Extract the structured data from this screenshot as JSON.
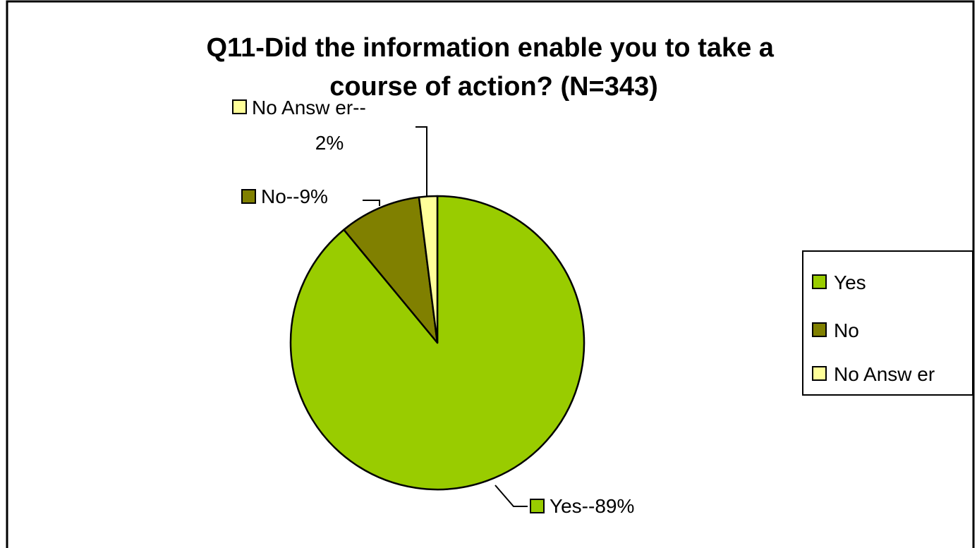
{
  "chart_data": {
    "type": "pie",
    "title": "Q11-Did the information enable you to take a course of action? (N=343)",
    "title_lines": [
      "Q11-Did the information enable you to take a",
      "course of action? (N=343)"
    ],
    "slices": [
      {
        "name": "Yes",
        "value": 89,
        "color": "#99cc00",
        "label_lines": [
          "Yes--89%"
        ]
      },
      {
        "name": "No",
        "value": 9,
        "color": "#808000",
        "label_lines": [
          "No--9%"
        ]
      },
      {
        "name": "No Answer",
        "value": 2,
        "color": "#ffff99",
        "label_lines": [
          "No Answ er--",
          "2%"
        ]
      }
    ],
    "legend": {
      "position": "right",
      "entries": [
        "Yes",
        "No",
        "No Answ er"
      ]
    },
    "slice_border_color": "#000000"
  }
}
